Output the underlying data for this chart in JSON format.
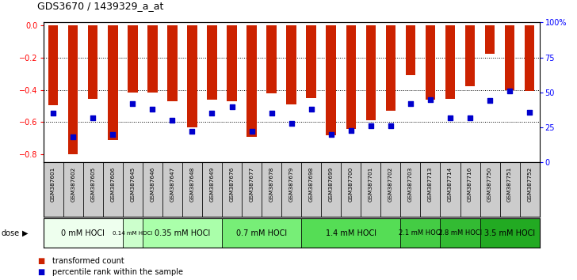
{
  "title": "GDS3670 / 1439329_a_at",
  "samples": [
    "GSM387601",
    "GSM387602",
    "GSM387605",
    "GSM387606",
    "GSM387645",
    "GSM387646",
    "GSM387647",
    "GSM387648",
    "GSM387649",
    "GSM387676",
    "GSM387677",
    "GSM387678",
    "GSM387679",
    "GSM387698",
    "GSM387699",
    "GSM387700",
    "GSM387701",
    "GSM387702",
    "GSM387703",
    "GSM387713",
    "GSM387714",
    "GSM387716",
    "GSM387750",
    "GSM387751",
    "GSM387752"
  ],
  "transformed_counts": [
    -0.495,
    -0.8,
    -0.455,
    -0.71,
    -0.415,
    -0.415,
    -0.47,
    -0.63,
    -0.46,
    -0.47,
    -0.69,
    -0.42,
    -0.49,
    -0.45,
    -0.68,
    -0.64,
    -0.59,
    -0.53,
    -0.31,
    -0.46,
    -0.455,
    -0.375,
    -0.175,
    -0.4,
    -0.405
  ],
  "percentile_ranks": [
    35,
    18,
    32,
    20,
    42,
    38,
    30,
    22,
    35,
    40,
    22,
    35,
    28,
    38,
    20,
    23,
    26,
    26,
    42,
    45,
    32,
    32,
    44,
    51,
    36
  ],
  "dose_groups": [
    {
      "label": "0 mM HOCl",
      "start": 0,
      "end": 4,
      "color": "#eeffee"
    },
    {
      "label": "0.14 mM HOCl",
      "start": 4,
      "end": 5,
      "color": "#ccffcc"
    },
    {
      "label": "0.35 mM HOCl",
      "start": 5,
      "end": 9,
      "color": "#aaffaa"
    },
    {
      "label": "0.7 mM HOCl",
      "start": 9,
      "end": 13,
      "color": "#77ee77"
    },
    {
      "label": "1.4 mM HOCl",
      "start": 13,
      "end": 18,
      "color": "#55dd55"
    },
    {
      "label": "2.1 mM HOCl",
      "start": 18,
      "end": 20,
      "color": "#44cc44"
    },
    {
      "label": "2.8 mM HOCl",
      "start": 20,
      "end": 22,
      "color": "#33bb33"
    },
    {
      "label": "3.5 mM HOCl",
      "start": 22,
      "end": 25,
      "color": "#22aa22"
    }
  ],
  "ylim_left": [
    -0.85,
    0.02
  ],
  "yticks_left": [
    0,
    -0.2,
    -0.4,
    -0.6,
    -0.8
  ],
  "yticks_right": [
    0,
    25,
    50,
    75,
    100
  ],
  "bar_color": "#cc2200",
  "dot_color": "#0000cc",
  "bg_color": "#ffffff"
}
